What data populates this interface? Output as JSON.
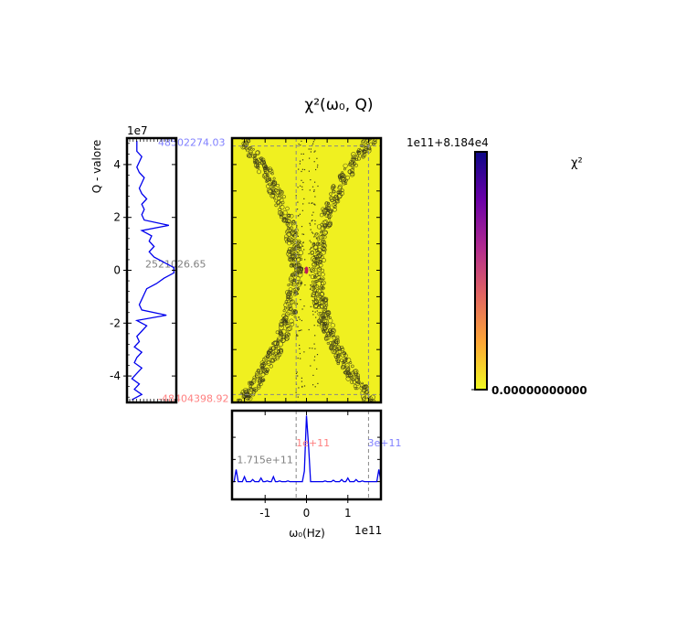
{
  "chart_data": {
    "type": "heatmap",
    "title": "χ²(ω₀, Q)",
    "colorbar": {
      "label": "χ²",
      "offset_label": "1e11+8.184e4",
      "min_label": "0.00000000000",
      "colormap": "plasma"
    },
    "main": {
      "background_color": "#f0f020",
      "marker_color": "#3a3a1a",
      "xlim": [
        -180000000000.0,
        180000000000.0
      ],
      "ylim": [
        -50000000.0,
        50000000.0
      ],
      "vlines": [
        -25000000000.0,
        150000000000.0
      ],
      "hlines": [
        47000000.0,
        -47000000.0
      ],
      "minimum_point": {
        "x": 0,
        "y": 0,
        "color": "#c0185a"
      }
    },
    "left_panel": {
      "ylabel": "Q - valore",
      "scale_label": "1e7",
      "yticks": [
        {
          "value": 4,
          "label": "4"
        },
        {
          "value": 2,
          "label": "2"
        },
        {
          "value": 0,
          "label": "0"
        },
        {
          "value": -2,
          "label": "-2"
        },
        {
          "value": -4,
          "label": "-4"
        }
      ],
      "ylim": [
        -5,
        5
      ],
      "annotations": [
        {
          "text": "48502274.03",
          "y": 4.85,
          "color": "#8080ff"
        },
        {
          "text": "2521026.65",
          "y": 0.25,
          "color": "#808080"
        },
        {
          "text": "-48404398.92",
          "y": -4.84,
          "color": "#ff8080"
        }
      ],
      "line_color": "#0000ee",
      "y": [
        -4.9,
        -4.7,
        -4.5,
        -4.3,
        -4.1,
        -3.9,
        -3.7,
        -3.5,
        -3.3,
        -3.1,
        -2.9,
        -2.7,
        -2.5,
        -2.3,
        -2.1,
        -1.9,
        -1.7,
        -1.5,
        -1.3,
        -1.1,
        -0.9,
        -0.7,
        -0.5,
        -0.3,
        -0.1,
        0.1,
        0.3,
        0.5,
        0.7,
        0.9,
        1.1,
        1.3,
        1.5,
        1.7,
        1.9,
        2.1,
        2.3,
        2.5,
        2.7,
        2.9,
        3.1,
        3.3,
        3.5,
        3.7,
        3.9,
        4.1,
        4.3,
        4.5,
        4.7,
        4.9
      ],
      "x": [
        0.1,
        0.3,
        0.15,
        0.25,
        0.1,
        0.2,
        0.3,
        0.15,
        0.2,
        0.3,
        0.15,
        0.25,
        0.2,
        0.3,
        0.4,
        0.2,
        0.8,
        0.3,
        0.25,
        0.3,
        0.35,
        0.4,
        0.6,
        0.75,
        0.95,
        0.95,
        0.75,
        0.55,
        0.45,
        0.55,
        0.45,
        0.5,
        0.3,
        0.85,
        0.35,
        0.3,
        0.35,
        0.3,
        0.4,
        0.3,
        0.25,
        0.3,
        0.35,
        0.25,
        0.2,
        0.25,
        0.3,
        0.2,
        0.2,
        0.2
      ],
      "xlim": [
        0,
        1
      ]
    },
    "bottom_panel": {
      "xlabel": "ω₀(Hz)",
      "scale_label": "1e11",
      "xticks": [
        {
          "value": -1,
          "label": "-1"
        },
        {
          "value": 0,
          "label": "0"
        },
        {
          "value": 1,
          "label": "1"
        }
      ],
      "xlim": [
        -1.8,
        1.8
      ],
      "annotations": [
        {
          "text": "1.715e+11",
          "x": -1.68,
          "yfrac": 0.55,
          "color": "#808080"
        },
        {
          "text": "1e+11",
          "x": -0.25,
          "yfrac": 0.36,
          "color": "#ff8080"
        },
        {
          "text": "3e+11",
          "x": 1.48,
          "yfrac": 0.36,
          "color": "#8080ff"
        }
      ],
      "vlines": [
        -0.25,
        1.5
      ],
      "line_color": "#0000ee",
      "x": [
        -1.8,
        -1.75,
        -1.7,
        -1.65,
        -1.6,
        -1.55,
        -1.5,
        -1.45,
        -1.4,
        -1.35,
        -1.3,
        -1.25,
        -1.2,
        -1.15,
        -1.1,
        -1.05,
        -1.0,
        -0.95,
        -0.9,
        -0.85,
        -0.8,
        -0.75,
        -0.7,
        -0.65,
        -0.6,
        -0.55,
        -0.5,
        -0.45,
        -0.4,
        -0.35,
        -0.3,
        -0.25,
        -0.2,
        -0.15,
        -0.1,
        -0.05,
        0.0,
        0.05,
        0.1,
        0.15,
        0.2,
        0.25,
        0.3,
        0.35,
        0.4,
        0.45,
        0.5,
        0.55,
        0.6,
        0.65,
        0.7,
        0.75,
        0.8,
        0.85,
        0.9,
        0.95,
        1.0,
        1.05,
        1.1,
        1.15,
        1.2,
        1.25,
        1.3,
        1.35,
        1.4,
        1.45,
        1.5,
        1.55,
        1.6,
        1.65,
        1.7,
        1.75,
        1.8
      ],
      "y": [
        0.05,
        0.05,
        0.22,
        0.05,
        0.05,
        0.05,
        0.12,
        0.05,
        0.05,
        0.05,
        0.08,
        0.05,
        0.05,
        0.05,
        0.1,
        0.05,
        0.05,
        0.06,
        0.05,
        0.05,
        0.12,
        0.05,
        0.05,
        0.06,
        0.05,
        0.05,
        0.05,
        0.06,
        0.05,
        0.05,
        0.05,
        0.05,
        0.05,
        0.05,
        0.05,
        0.2,
        0.98,
        0.55,
        0.05,
        0.05,
        0.05,
        0.05,
        0.05,
        0.05,
        0.05,
        0.06,
        0.05,
        0.05,
        0.05,
        0.07,
        0.05,
        0.05,
        0.05,
        0.08,
        0.05,
        0.05,
        0.1,
        0.05,
        0.05,
        0.05,
        0.08,
        0.05,
        0.05,
        0.06,
        0.05,
        0.05,
        0.05,
        0.05,
        0.05,
        0.05,
        0.05,
        0.22,
        0.05
      ],
      "ylim": [
        -0.2,
        1.05
      ]
    }
  }
}
